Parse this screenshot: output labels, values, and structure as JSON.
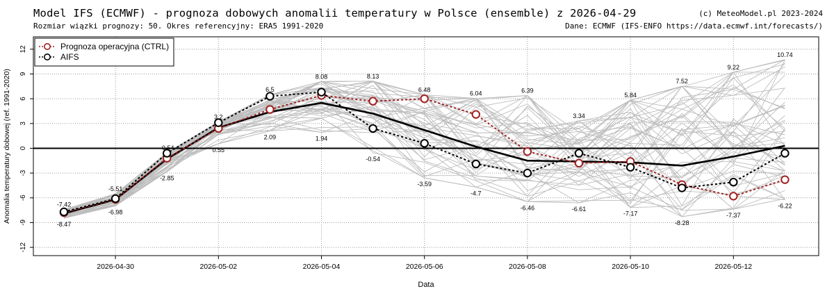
{
  "header": {
    "title": "Model IFS (ECMWF) - prognoza dobowych anomalii temperatury w Polsce (ensemble) z 2026-04-29",
    "subtitle": "Rozmiar wiązki prognozy: 50. Okres referencyjny: ERA5 1991-2020",
    "copyright": "(c) MeteoModel.pl 2023-2024",
    "source": "Dane: ECMWF (IFS-ENFO https://data.ecmwf.int/forecasts/)"
  },
  "chart_data": {
    "type": "line",
    "xlabel": "Data",
    "ylabel": "Anomalia temperatury dobowej (ref. 1991-2020)",
    "x": [
      "2026-04-29",
      "2026-04-30",
      "2026-05-01",
      "2026-05-02",
      "2026-05-03",
      "2026-05-04",
      "2026-05-05",
      "2026-05-06",
      "2026-05-07",
      "2026-05-08",
      "2026-05-09",
      "2026-05-10",
      "2026-05-11",
      "2026-05-12",
      "2026-05-13"
    ],
    "x_tick_labels": [
      "2026-04-30",
      "2026-05-02",
      "2026-05-04",
      "2026-05-06",
      "2026-05-08",
      "2026-05-10",
      "2026-05-12"
    ],
    "ylim": [
      -13,
      13.5
    ],
    "y_ticks": [
      -12,
      -9,
      -6,
      -3,
      0,
      3,
      6,
      9,
      12
    ],
    "grid": true,
    "legend_position": "top-left",
    "series": [
      {
        "name": "Prognoza operacyjna (CTRL)",
        "color": "#a02020",
        "values": [
          -7.8,
          -6.2,
          -1.2,
          2.4,
          4.7,
          6.4,
          5.7,
          6.0,
          4.1,
          -0.4,
          -1.8,
          -1.6,
          -4.4,
          -5.8,
          -3.8
        ]
      },
      {
        "name": "AIFS",
        "color": "#000000",
        "values": [
          -7.7,
          -6.1,
          -0.6,
          3.1,
          6.3,
          6.8,
          2.4,
          0.6,
          -1.9,
          -3.0,
          -0.6,
          -2.3,
          -4.8,
          -4.1,
          -0.6
        ]
      }
    ],
    "ensemble_mean": [
      -7.9,
      -6.2,
      -1.3,
      2.5,
      4.4,
      5.5,
      4.2,
      2.2,
      0.2,
      -1.5,
      -1.6,
      -1.7,
      -2.1,
      -1.0,
      0.3
    ],
    "ensemble_max_labels": [
      "-7.42",
      "-5.51",
      "-0.54",
      "3.2",
      "6.5",
      "8.08",
      "8.13",
      "6.48",
      "6.04",
      "6.39",
      "3.34",
      "5.84",
      "7.52",
      "9.22",
      "10.74"
    ],
    "ensemble_max_values": [
      -7.42,
      -5.51,
      -0.54,
      3.2,
      6.5,
      8.08,
      8.13,
      6.48,
      6.04,
      6.39,
      3.34,
      5.84,
      7.52,
      9.22,
      10.74
    ],
    "ensemble_min_labels": [
      "-8.47",
      "-6.98",
      "-2.85",
      "0.55",
      "2.09",
      "1.94",
      "-0.54",
      "-3.59",
      "-4.7",
      "-6.46",
      "-6.61",
      "-7.17",
      "-8.28",
      "-7.37",
      "-6.22"
    ],
    "ensemble_min_values": [
      -8.47,
      -6.98,
      -2.85,
      0.55,
      2.09,
      1.94,
      -0.54,
      -3.59,
      -4.7,
      -6.46,
      -6.61,
      -7.17,
      -8.28,
      -7.37,
      -6.22
    ]
  }
}
